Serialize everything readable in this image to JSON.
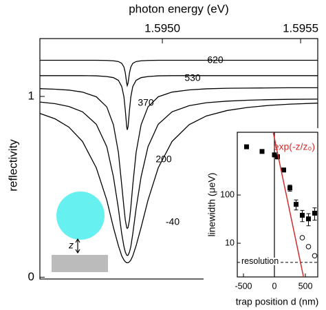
{
  "chart_data": [
    {
      "type": "line",
      "xlabel": "photon energy (eV)",
      "ylabel": "reflectivity",
      "xlim": [
        1.594557,
        1.595562
      ],
      "ylim": [
        -0.01,
        1.32
      ],
      "xticks": [
        {
          "value": 1.595,
          "label": "1.5950"
        },
        {
          "value": 1.5955,
          "label": "1.5955"
        }
      ],
      "yticks": [
        0,
        1
      ],
      "annotations": [
        "z"
      ],
      "x": [
        1.594557,
        1.594612,
        1.594662,
        1.594711,
        1.594761,
        1.594799,
        1.594823,
        1.594841,
        1.594853,
        1.594861,
        1.594866,
        1.594871,
        1.594873,
        1.594876,
        1.594881,
        1.594886,
        1.594893,
        1.594905,
        1.594923,
        1.594948,
        1.594985,
        1.595035,
        1.595097,
        1.595159,
        1.595234,
        1.595308,
        1.595383,
        1.595458,
        1.595562
      ],
      "series": [
        {
          "name": "620",
          "color": "#000000",
          "values": [
            1.2,
            1.2,
            1.2,
            1.2,
            1.2,
            1.199,
            1.197,
            1.193,
            1.183,
            1.163,
            1.13,
            1.074,
            1.06,
            1.074,
            1.13,
            1.163,
            1.183,
            1.193,
            1.197,
            1.199,
            1.2,
            1.2,
            1.2,
            1.2,
            1.2,
            1.2,
            1.2,
            1.2,
            1.2
          ]
        },
        {
          "name": "530",
          "color": "#000000",
          "values": [
            1.115,
            1.115,
            1.115,
            1.115,
            1.114,
            1.11,
            1.104,
            1.089,
            1.055,
            0.998,
            0.923,
            0.833,
            0.815,
            0.833,
            0.923,
            0.998,
            1.055,
            1.089,
            1.104,
            1.11,
            1.114,
            1.115,
            1.115,
            1.115,
            1.115,
            1.115,
            1.115,
            1.115,
            1.115
          ]
        },
        {
          "name": "370",
          "color": "#000000",
          "values": [
            1.043,
            1.04,
            1.035,
            1.024,
            0.998,
            0.942,
            0.843,
            0.69,
            0.51,
            0.387,
            0.316,
            0.275,
            0.27,
            0.275,
            0.316,
            0.387,
            0.51,
            0.69,
            0.843,
            0.942,
            0.998,
            1.024,
            1.036,
            1.042,
            1.045,
            1.046,
            1.047,
            1.048,
            1.048
          ]
        },
        {
          "name": "200",
          "color": "#000000",
          "values": [
            0.969,
            0.96,
            0.944,
            0.915,
            0.846,
            0.722,
            0.555,
            0.38,
            0.24,
            0.17,
            0.139,
            0.122,
            0.12,
            0.122,
            0.139,
            0.17,
            0.24,
            0.38,
            0.555,
            0.722,
            0.846,
            0.915,
            0.949,
            0.965,
            0.974,
            0.979,
            0.982,
            0.984,
            0.985
          ]
        },
        {
          "name": "-40",
          "color": "#000000",
          "values": [
            0.906,
            0.876,
            0.83,
            0.751,
            0.605,
            0.426,
            0.275,
            0.174,
            0.118,
            0.095,
            0.085,
            0.08,
            0.08,
            0.08,
            0.085,
            0.095,
            0.118,
            0.174,
            0.275,
            0.426,
            0.605,
            0.751,
            0.844,
            0.892,
            0.922,
            0.939,
            0.95,
            0.957,
            0.963
          ]
        }
      ]
    },
    {
      "type": "scatter",
      "xlabel": "trap position d (nm)",
      "ylabel": "linewidth (μeV)",
      "xlim": [
        -600,
        700
      ],
      "ylim": [
        2,
        2000
      ],
      "log_y": true,
      "xticks": [
        -500,
        0,
        500
      ],
      "yticks": [
        10,
        100
      ],
      "reference_line": {
        "label": "resolution",
        "value": 4
      },
      "series": [
        {
          "marker": "square",
          "color": "#000000",
          "x": [
            -450,
            -200,
            0,
            50,
            150,
            250,
            350,
            450,
            550,
            650
          ],
          "values": [
            1000,
            800,
            680,
            620,
            330,
            140,
            64,
            38,
            32,
            42
          ],
          "errors": [
            null,
            null,
            60,
            60,
            null,
            20,
            15,
            10,
            9,
            12
          ]
        },
        {
          "marker": "circle-open",
          "color": "#000000",
          "x": [
            450,
            550,
            650
          ],
          "values": [
            13,
            8.5,
            5.5
          ]
        },
        {
          "name": "exp(-z/z₀)",
          "marker": "line",
          "color": "#d42a2a",
          "x": [
            -20,
            470
          ],
          "values": [
            2000,
            2
          ]
        }
      ]
    }
  ]
}
